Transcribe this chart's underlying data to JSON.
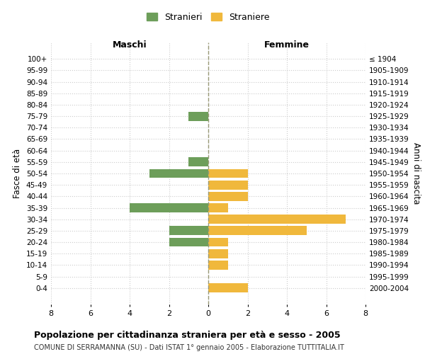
{
  "age_groups": [
    "100+",
    "95-99",
    "90-94",
    "85-89",
    "80-84",
    "75-79",
    "70-74",
    "65-69",
    "60-64",
    "55-59",
    "50-54",
    "45-49",
    "40-44",
    "35-39",
    "30-34",
    "25-29",
    "20-24",
    "15-19",
    "10-14",
    "5-9",
    "0-4"
  ],
  "birth_years": [
    "≤ 1904",
    "1905-1909",
    "1910-1914",
    "1915-1919",
    "1920-1924",
    "1925-1929",
    "1930-1934",
    "1935-1939",
    "1940-1944",
    "1945-1949",
    "1950-1954",
    "1955-1959",
    "1960-1964",
    "1965-1969",
    "1970-1974",
    "1975-1979",
    "1980-1984",
    "1985-1989",
    "1990-1994",
    "1995-1999",
    "2000-2004"
  ],
  "males": [
    0,
    0,
    0,
    0,
    0,
    1,
    0,
    0,
    0,
    1,
    3,
    0,
    0,
    4,
    0,
    2,
    2,
    0,
    0,
    0,
    0
  ],
  "females": [
    0,
    0,
    0,
    0,
    0,
    0,
    0,
    0,
    0,
    0,
    2,
    2,
    2,
    1,
    7,
    5,
    1,
    1,
    1,
    0,
    2
  ],
  "male_color": "#6d9e5a",
  "female_color": "#f0b83c",
  "title": "Popolazione per cittadinanza straniera per età e sesso - 2005",
  "subtitle": "COMUNE DI SERRAMANNA (SU) - Dati ISTAT 1° gennaio 2005 - Elaborazione TUTTITALIA.IT",
  "xlabel_left": "Maschi",
  "xlabel_right": "Femmine",
  "ylabel_left": "Fasce di età",
  "ylabel_right": "Anni di nascita",
  "legend_male": "Stranieri",
  "legend_female": "Straniere",
  "xlim": 8,
  "background_color": "#ffffff",
  "grid_color": "#cccccc",
  "bar_height": 0.8
}
